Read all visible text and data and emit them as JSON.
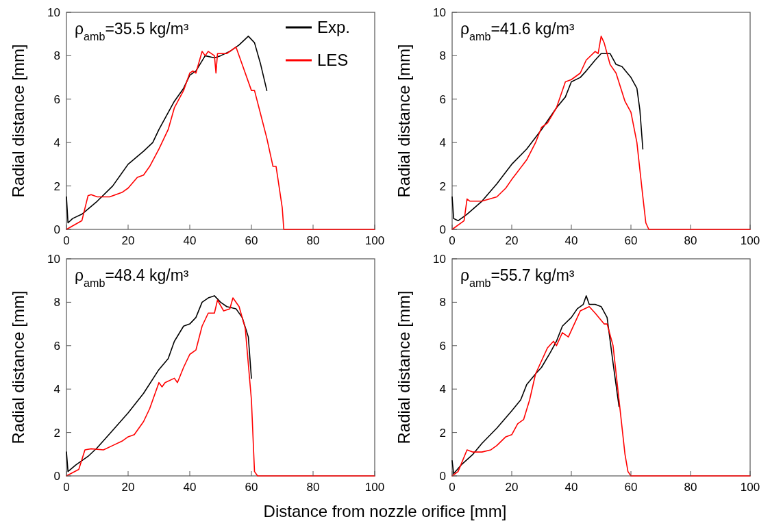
{
  "chart_data": [
    {
      "type": "line",
      "annotations": [
        "ρ$_{amb}$=35.5 kg/m³"
      ],
      "ylabel": "Radial distance [mm]",
      "xlim": [
        0,
        100
      ],
      "ylim": [
        0,
        10
      ],
      "xticks": [
        0,
        20,
        40,
        60,
        80,
        100
      ],
      "yticks": [
        0,
        2,
        4,
        6,
        8,
        10
      ],
      "legend": "top right",
      "line_style": "solid",
      "series": [
        {
          "name": "Exp.",
          "color": "#000000",
          "x": [
            0,
            0.5,
            2,
            5,
            10,
            15,
            20,
            25,
            28,
            30,
            35,
            38,
            40,
            42,
            45,
            48,
            50,
            53,
            56,
            59,
            61,
            63,
            65
          ],
          "values": [
            1.5,
            0.3,
            0.5,
            0.7,
            1.3,
            2.0,
            3.0,
            3.6,
            4.0,
            4.6,
            5.9,
            6.5,
            7.1,
            7.3,
            8.0,
            7.9,
            8.0,
            8.2,
            8.5,
            8.9,
            8.6,
            7.6,
            6.4
          ]
        },
        {
          "name": "LES",
          "color": "#ff0000",
          "x": [
            0,
            5,
            7,
            8,
            10,
            14,
            18,
            20,
            23,
            25,
            27,
            30,
            33,
            35,
            38,
            40,
            41,
            42,
            44,
            45,
            46,
            48,
            48.5,
            49,
            52,
            55,
            57,
            60,
            61,
            63,
            65,
            67,
            68,
            70,
            70.5,
            100
          ],
          "values": [
            0,
            0.4,
            1.55,
            1.6,
            1.5,
            1.5,
            1.7,
            1.9,
            2.4,
            2.5,
            2.9,
            3.7,
            4.6,
            5.6,
            6.4,
            7.2,
            7.3,
            7.2,
            8.2,
            8.0,
            8.2,
            8.0,
            7.2,
            8.1,
            8.1,
            8.4,
            7.6,
            6.4,
            6.4,
            5.3,
            4.2,
            2.9,
            2.9,
            1.0,
            0,
            0
          ]
        }
      ]
    },
    {
      "type": "line",
      "annotations": [
        "ρ$_{amb}$=41.6 kg/m³"
      ],
      "ylabel": "Radial distance [mm]",
      "xlim": [
        0,
        100
      ],
      "ylim": [
        0,
        10
      ],
      "xticks": [
        0,
        20,
        40,
        60,
        80,
        100
      ],
      "yticks": [
        0,
        2,
        4,
        6,
        8,
        10
      ],
      "line_style": "solid",
      "series": [
        {
          "color": "#000000",
          "x": [
            0,
            0.5,
            2,
            5,
            10,
            15,
            20,
            25,
            30,
            35,
            38,
            40,
            43,
            45,
            48,
            50,
            53,
            55,
            57,
            60,
            62,
            63,
            64
          ],
          "values": [
            1.5,
            0.5,
            0.4,
            0.7,
            1.3,
            2.1,
            3.0,
            3.7,
            4.6,
            5.6,
            6.1,
            6.8,
            7.0,
            7.3,
            7.8,
            8.1,
            8.1,
            7.6,
            7.5,
            7.0,
            6.5,
            5.5,
            3.7
          ]
        },
        {
          "color": "#ff0000",
          "x": [
            0,
            4,
            5,
            6,
            10,
            15,
            18,
            20,
            25,
            28,
            30,
            32,
            35,
            38,
            40,
            43,
            45,
            48,
            49,
            50,
            51,
            53,
            55,
            58,
            60,
            62,
            64,
            65,
            66,
            100
          ],
          "values": [
            0,
            0.4,
            1.4,
            1.3,
            1.3,
            1.5,
            1.9,
            2.3,
            3.2,
            4.0,
            4.7,
            4.9,
            5.6,
            6.8,
            6.9,
            7.2,
            7.8,
            8.2,
            8.1,
            8.9,
            8.6,
            7.6,
            7.2,
            5.9,
            5.4,
            4.0,
            1.5,
            0.3,
            0,
            0
          ]
        }
      ]
    },
    {
      "type": "line",
      "annotations": [
        "ρ$_{amb}$=48.4 kg/m³"
      ],
      "ylabel": "Radial distance [mm]",
      "xlabel": "Distance from nozzle orifice [mm]",
      "xlim": [
        0,
        100
      ],
      "ylim": [
        0,
        10
      ],
      "xticks": [
        0,
        20,
        40,
        60,
        80,
        100
      ],
      "yticks": [
        0,
        2,
        4,
        6,
        8,
        10
      ],
      "line_style": "solid",
      "series": [
        {
          "color": "#000000",
          "x": [
            0,
            0.5,
            3,
            7,
            10,
            15,
            20,
            25,
            30,
            33,
            35,
            38,
            40,
            42,
            44,
            46,
            48,
            50,
            52,
            55,
            57,
            59,
            60
          ],
          "values": [
            1.1,
            0.2,
            0.5,
            0.9,
            1.3,
            2.1,
            2.9,
            3.8,
            4.9,
            5.4,
            6.2,
            6.9,
            7.0,
            7.3,
            8.0,
            8.2,
            8.3,
            8.0,
            7.8,
            7.7,
            7.3,
            6.4,
            4.5
          ]
        },
        {
          "color": "#ff0000",
          "x": [
            0,
            4,
            6,
            8,
            12,
            15,
            18,
            20,
            22,
            25,
            27,
            30,
            31,
            32,
            35,
            36,
            38,
            40,
            42,
            44,
            46,
            48,
            49,
            51,
            53,
            54,
            56,
            58,
            60,
            61,
            62,
            100
          ],
          "values": [
            0,
            0.3,
            1.2,
            1.25,
            1.2,
            1.4,
            1.6,
            1.8,
            1.9,
            2.5,
            3.1,
            4.3,
            4.1,
            4.3,
            4.5,
            4.3,
            5.0,
            5.6,
            5.8,
            6.9,
            7.5,
            7.5,
            8.1,
            7.6,
            7.7,
            8.2,
            7.8,
            6.8,
            3.5,
            0.2,
            0,
            0
          ]
        }
      ]
    },
    {
      "type": "line",
      "annotations": [
        "ρ$_{amb}$=55.7 kg/m³"
      ],
      "ylabel": "Radial distance [mm]",
      "xlim": [
        0,
        100
      ],
      "ylim": [
        0,
        10
      ],
      "xticks": [
        0,
        20,
        40,
        60,
        80,
        100
      ],
      "yticks": [
        0,
        2,
        4,
        6,
        8,
        10
      ],
      "line_style": "solid",
      "series": [
        {
          "color": "#000000",
          "x": [
            0,
            0.5,
            3,
            7,
            10,
            15,
            20,
            23,
            25,
            28,
            30,
            33,
            35,
            37,
            40,
            42,
            44,
            45,
            46,
            48,
            50,
            52,
            54,
            56
          ],
          "values": [
            0.7,
            0.1,
            0.5,
            1.0,
            1.5,
            2.2,
            3.0,
            3.5,
            4.2,
            4.7,
            5.0,
            5.7,
            6.2,
            6.9,
            7.3,
            7.7,
            7.9,
            8.3,
            7.9,
            7.9,
            7.8,
            7.3,
            5.2,
            3.2
          ]
        },
        {
          "color": "#ff0000",
          "x": [
            0,
            2,
            5,
            7,
            10,
            13,
            15,
            18,
            20,
            22,
            24,
            26,
            28,
            30,
            32,
            34,
            35,
            37,
            39,
            41,
            43,
            46,
            48,
            51,
            52,
            54,
            56,
            58,
            59,
            60,
            100
          ],
          "values": [
            0,
            0.2,
            1.2,
            1.1,
            1.1,
            1.2,
            1.4,
            1.8,
            1.9,
            2.4,
            2.6,
            3.5,
            4.7,
            5.3,
            5.9,
            6.2,
            6.0,
            6.6,
            6.4,
            7.0,
            7.6,
            7.8,
            7.5,
            7.0,
            7.0,
            6.0,
            3.5,
            1.0,
            0.2,
            0,
            0
          ]
        }
      ]
    }
  ]
}
